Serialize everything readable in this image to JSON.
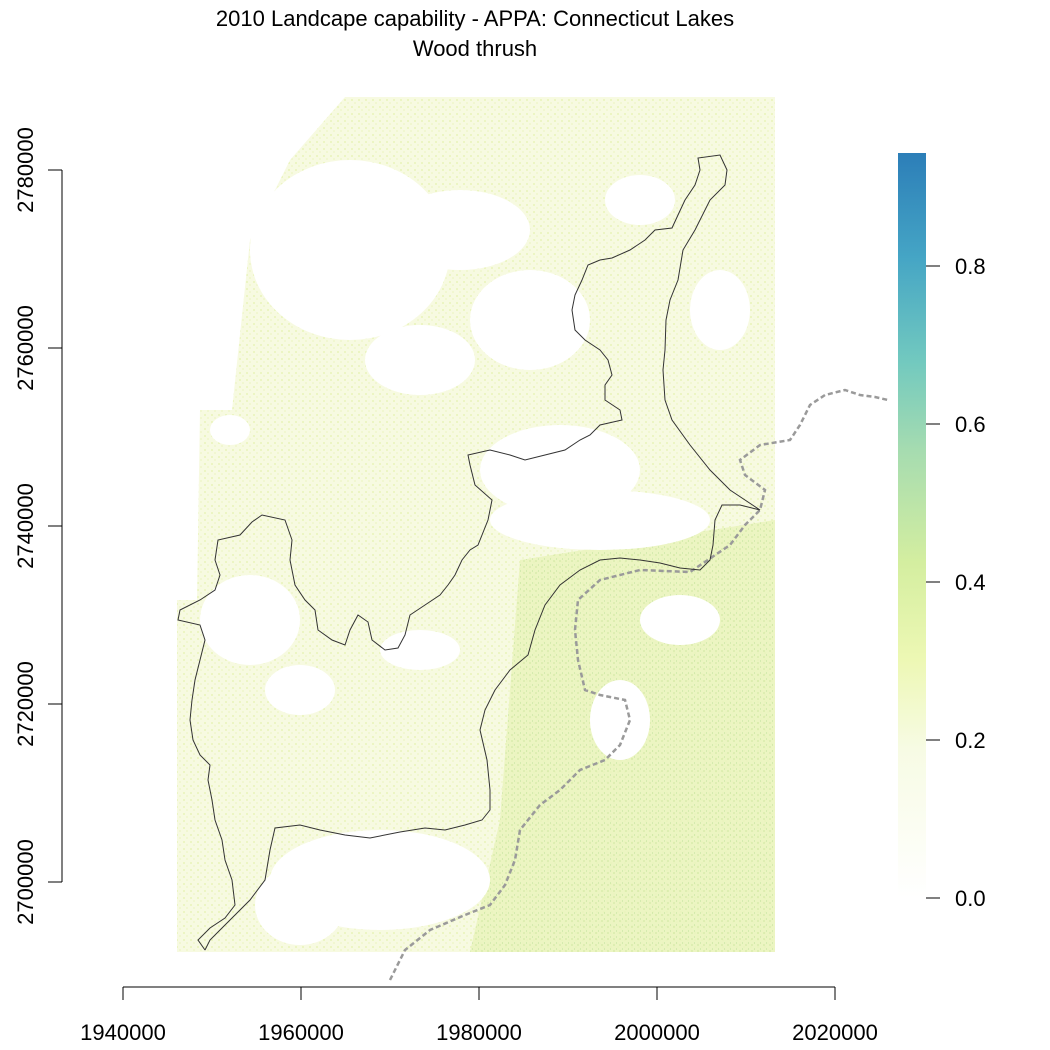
{
  "title": {
    "line1": "2010 Landcape capability - APPA: Connecticut Lakes",
    "line2": "Wood thrush"
  },
  "map": {
    "x_ticks": [
      1940000,
      1960000,
      1980000,
      2000000,
      2020000
    ],
    "y_ticks": [
      2700000,
      2720000,
      2740000,
      2760000,
      2780000
    ],
    "x_range": [
      1946000,
      2013000
    ],
    "y_range": [
      2692000,
      2788000
    ]
  },
  "legend": {
    "ticks": [
      "0.0",
      "0.2",
      "0.4",
      "0.6",
      "0.8"
    ],
    "range": [
      0,
      0.95
    ],
    "colors": [
      "#ffffff",
      "#f2f8c8",
      "#e6f5a8",
      "#c9ea9c",
      "#7fcfbb",
      "#41a6c4",
      "#2c80ba"
    ]
  }
}
